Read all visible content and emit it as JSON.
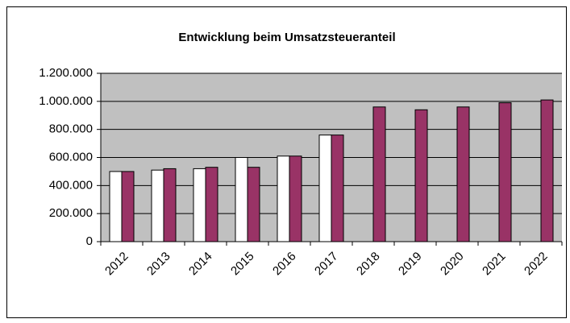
{
  "chart_data": {
    "type": "bar",
    "title": "Entwicklung beim Umsatzsteueranteil",
    "categories": [
      "2012",
      "2013",
      "2014",
      "2015",
      "2016",
      "2017",
      "2018",
      "2019",
      "2020",
      "2021",
      "2022"
    ],
    "series": [
      {
        "color": "#ffffff",
        "values": [
          500000,
          510000,
          520000,
          600000,
          610000,
          760000,
          null,
          null,
          null,
          null,
          null
        ]
      },
      {
        "color": "#993366",
        "values": [
          500000,
          520000,
          530000,
          530000,
          610000,
          760000,
          960000,
          940000,
          960000,
          990000,
          1010000
        ]
      }
    ],
    "ylim": [
      0,
      1200000
    ],
    "yticks": [
      0,
      {
        "value": 200000,
        "label": "200.000"
      },
      {
        "value": 400000,
        "label": "400.000"
      },
      {
        "value": 600000,
        "label": "600.000"
      },
      {
        "value": 800000,
        "label": "800.000"
      },
      {
        "value": 1000000,
        "label": "1.000.000"
      },
      {
        "value": 1200000,
        "label": "1.200.000"
      }
    ],
    "grid": true,
    "plot_background": "#c0c0c0"
  }
}
